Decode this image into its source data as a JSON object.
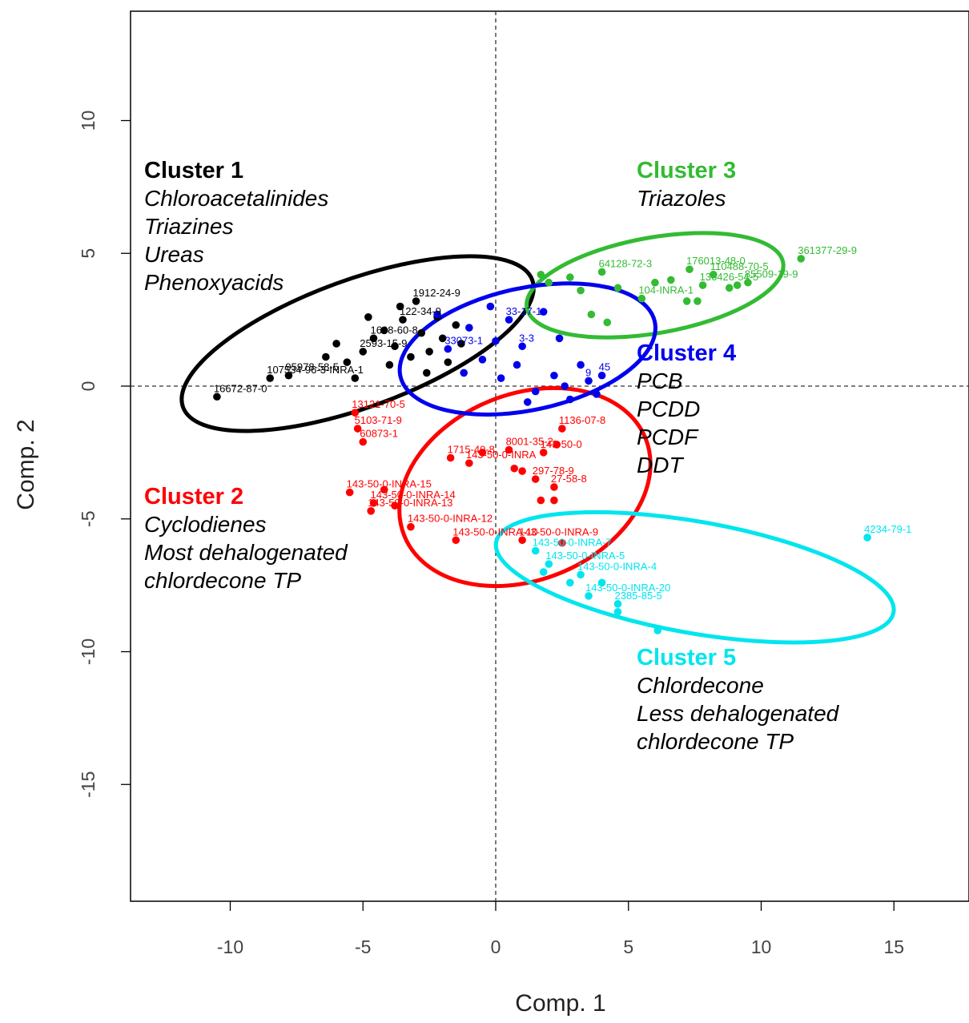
{
  "chart_data": {
    "type": "scatter",
    "xlabel": "Comp. 1",
    "ylabel": "Comp. 2",
    "xlim": [
      -13.8,
      18
    ],
    "ylim": [
      -19.5,
      14.1
    ],
    "x_ticks": [
      -10,
      -5,
      0,
      5,
      10,
      15
    ],
    "y_ticks": [
      10,
      5,
      0,
      -5,
      -10,
      -15
    ],
    "reference_lines": {
      "x": 0,
      "y": 0,
      "style": "dashed"
    },
    "grid": false,
    "clusters": [
      {
        "name": "Cluster 1",
        "color": "#000000",
        "description": [
          "Chloroacetalinides",
          "Triazines",
          "Ureas",
          "Phenoxyacids"
        ],
        "ellipse": {
          "cx": -5.2,
          "cy": 1.6,
          "rx": 7.0,
          "ry": 2.4,
          "angle_deg": -20
        },
        "points": [
          {
            "x": -10.5,
            "y": -0.4,
            "label": "16672-87-0"
          },
          {
            "x": -8.5,
            "y": 0.3,
            "label": "107534-96-3-INRA-1"
          },
          {
            "x": -7.8,
            "y": 0.4,
            "label": "95978-58-5"
          },
          {
            "x": -5.6,
            "y": 0.9
          },
          {
            "x": -5.0,
            "y": 1.3,
            "label": "2593-15-9"
          },
          {
            "x": -4.6,
            "y": 1.8,
            "label": "1698-60-8"
          },
          {
            "x": -4.2,
            "y": 2.1
          },
          {
            "x": -3.8,
            "y": 1.5
          },
          {
            "x": -3.5,
            "y": 2.5,
            "label": "122-34-9"
          },
          {
            "x": -3.2,
            "y": 1.1
          },
          {
            "x": -3.0,
            "y": 3.2,
            "label": "1912-24-9"
          },
          {
            "x": -2.8,
            "y": 2.0
          },
          {
            "x": -2.5,
            "y": 1.3
          },
          {
            "x": -2.2,
            "y": 2.6
          },
          {
            "x": -2.0,
            "y": 1.8
          },
          {
            "x": -1.8,
            "y": 0.9
          },
          {
            "x": -1.5,
            "y": 2.3
          },
          {
            "x": -1.3,
            "y": 1.6
          },
          {
            "x": -5.3,
            "y": 0.3
          },
          {
            "x": -4.8,
            "y": 2.6
          },
          {
            "x": -4.0,
            "y": 0.8
          },
          {
            "x": -3.6,
            "y": 3.0
          },
          {
            "x": -2.6,
            "y": 0.5
          },
          {
            "x": -6.0,
            "y": 1.6
          },
          {
            "x": -6.4,
            "y": 1.1
          }
        ]
      },
      {
        "name": "Cluster 2",
        "color": "#ff0000",
        "description": [
          "Cyclodienes",
          "Most dehalogenated",
          "chlordecone TP"
        ],
        "ellipse": {
          "cx": 1.1,
          "cy": -3.8,
          "rx": 4.9,
          "ry": 3.5,
          "angle_deg": -22
        },
        "points": [
          {
            "x": -5.3,
            "y": -1.0,
            "label": "13121-70-5"
          },
          {
            "x": -5.2,
            "y": -1.6,
            "label": "5103-71-9"
          },
          {
            "x": -5.0,
            "y": -2.1,
            "label": "60873-1"
          },
          {
            "x": -1.7,
            "y": -2.7,
            "label": "1715-40-8"
          },
          {
            "x": -1.0,
            "y": -2.9,
            "label": "143-50-0-INRA"
          },
          {
            "x": 0.5,
            "y": -2.4,
            "label": "8001-35-2"
          },
          {
            "x": 1.8,
            "y": -2.5,
            "label": "143-50-0"
          },
          {
            "x": 2.5,
            "y": -1.6,
            "label": "1136-07-8"
          },
          {
            "x": 2.3,
            "y": -2.2
          },
          {
            "x": 1.0,
            "y": -3.2
          },
          {
            "x": 1.5,
            "y": -3.5,
            "label": "297-78-9"
          },
          {
            "x": 2.2,
            "y": -3.8,
            "label": "27-58-8"
          },
          {
            "x": 1.7,
            "y": -4.3
          },
          {
            "x": 2.2,
            "y": -4.3
          },
          {
            "x": -5.5,
            "y": -4.0,
            "label": "143-50-0-INRA-15"
          },
          {
            "x": -4.6,
            "y": -4.4,
            "label": "143-50-0-INRA-14"
          },
          {
            "x": -4.7,
            "y": -4.7,
            "label": "143-50-0-INRA-13"
          },
          {
            "x": -3.2,
            "y": -5.3,
            "label": "143-50-0-INRA-12"
          },
          {
            "x": -1.5,
            "y": -5.8,
            "label": "143-50-0-INRA-10"
          },
          {
            "x": 1.0,
            "y": -5.8,
            "label": "143-50-0-INRA-9"
          },
          {
            "x": 2.5,
            "y": -5.9
          },
          {
            "x": -4.2,
            "y": -3.9
          },
          {
            "x": -3.8,
            "y": -4.5
          },
          {
            "x": 0.7,
            "y": -3.1
          },
          {
            "x": -0.5,
            "y": -2.5
          }
        ]
      },
      {
        "name": "Cluster 3",
        "color": "#33bb33",
        "description": [
          "Triazoles"
        ],
        "ellipse": {
          "cx": 6.0,
          "cy": 3.8,
          "rx": 4.9,
          "ry": 1.8,
          "angle_deg": -10
        },
        "points": [
          {
            "x": 11.5,
            "y": 4.8,
            "label": "361377-29-9"
          },
          {
            "x": 7.3,
            "y": 4.4,
            "label": "176013-48-0"
          },
          {
            "x": 8.2,
            "y": 4.2,
            "label": "110488-70-5"
          },
          {
            "x": 9.5,
            "y": 3.9,
            "label": "85509-19-9"
          },
          {
            "x": 7.8,
            "y": 3.8,
            "label": "136426-54-5"
          },
          {
            "x": 4.0,
            "y": 4.3,
            "label": "64128-72-3"
          },
          {
            "x": 2.0,
            "y": 3.9
          },
          {
            "x": 5.5,
            "y": 3.3,
            "label": "104-INRA-1"
          },
          {
            "x": 7.2,
            "y": 3.2
          },
          {
            "x": 7.6,
            "y": 3.2
          },
          {
            "x": 8.8,
            "y": 3.7
          },
          {
            "x": 9.1,
            "y": 3.8
          },
          {
            "x": 6.0,
            "y": 3.9
          },
          {
            "x": 3.2,
            "y": 3.6
          },
          {
            "x": 4.6,
            "y": 3.7
          },
          {
            "x": 2.8,
            "y": 4.1
          },
          {
            "x": 6.6,
            "y": 4.0
          },
          {
            "x": 3.6,
            "y": 2.7
          },
          {
            "x": 4.2,
            "y": 2.4
          },
          {
            "x": 1.7,
            "y": 4.2
          }
        ]
      },
      {
        "name": "Cluster 4",
        "color": "#0000ee",
        "description": [
          "PCB",
          "PCDD",
          "PCDF",
          "DDT"
        ],
        "ellipse": {
          "cx": 1.2,
          "cy": 1.4,
          "rx": 4.9,
          "ry": 2.3,
          "angle_deg": -12
        },
        "points": [
          {
            "x": -1.8,
            "y": 1.4,
            "label": "33073-1"
          },
          {
            "x": 0.5,
            "y": 2.5,
            "label": "33-17-1"
          },
          {
            "x": 1.0,
            "y": 1.5,
            "label": "3-3"
          },
          {
            "x": 2.2,
            "y": 0.4
          },
          {
            "x": 3.5,
            "y": 0.2,
            "label": "9"
          },
          {
            "x": 4.0,
            "y": 0.4,
            "label": "45"
          },
          {
            "x": -0.5,
            "y": 1.0
          },
          {
            "x": 0.2,
            "y": 0.3
          },
          {
            "x": 1.5,
            "y": -0.2
          },
          {
            "x": 2.8,
            "y": -0.5
          },
          {
            "x": 3.2,
            "y": 0.8
          },
          {
            "x": -1.0,
            "y": 2.2
          },
          {
            "x": -0.2,
            "y": 3.0
          },
          {
            "x": 1.8,
            "y": 2.8
          },
          {
            "x": 2.4,
            "y": 1.8
          },
          {
            "x": 0.8,
            "y": 0.8
          },
          {
            "x": -1.2,
            "y": 0.5
          },
          {
            "x": 1.2,
            "y": -0.6
          },
          {
            "x": -2.2,
            "y": 2.7
          },
          {
            "x": 2.6,
            "y": 0.0
          },
          {
            "x": 0.0,
            "y": 1.7
          },
          {
            "x": 3.8,
            "y": -0.3
          }
        ]
      },
      {
        "name": "Cluster 5",
        "color": "#00e5ee",
        "description": [
          "Chlordecone",
          "Less dehalogenated",
          "chlordecone TP"
        ],
        "ellipse": {
          "cx": 7.5,
          "cy": -7.2,
          "rx": 7.6,
          "ry": 2.1,
          "angle_deg": 10
        },
        "points": [
          {
            "x": 14.0,
            "y": -5.7,
            "label": "4234-79-1"
          },
          {
            "x": 1.5,
            "y": -6.2,
            "label": "143-50-0-INRA-7"
          },
          {
            "x": 2.0,
            "y": -6.7,
            "label": "143-50-0-INRA-5"
          },
          {
            "x": 3.2,
            "y": -7.1,
            "label": "143-50-0-INRA-4"
          },
          {
            "x": 3.5,
            "y": -7.9,
            "label": "143-50-0-INRA-20"
          },
          {
            "x": 4.6,
            "y": -8.2,
            "label": "2385-85-5"
          },
          {
            "x": 4.6,
            "y": -8.5
          },
          {
            "x": 6.1,
            "y": -9.2
          },
          {
            "x": 2.8,
            "y": -7.4
          },
          {
            "x": 1.8,
            "y": -7.0
          },
          {
            "x": 4.0,
            "y": -7.4
          }
        ]
      }
    ]
  }
}
